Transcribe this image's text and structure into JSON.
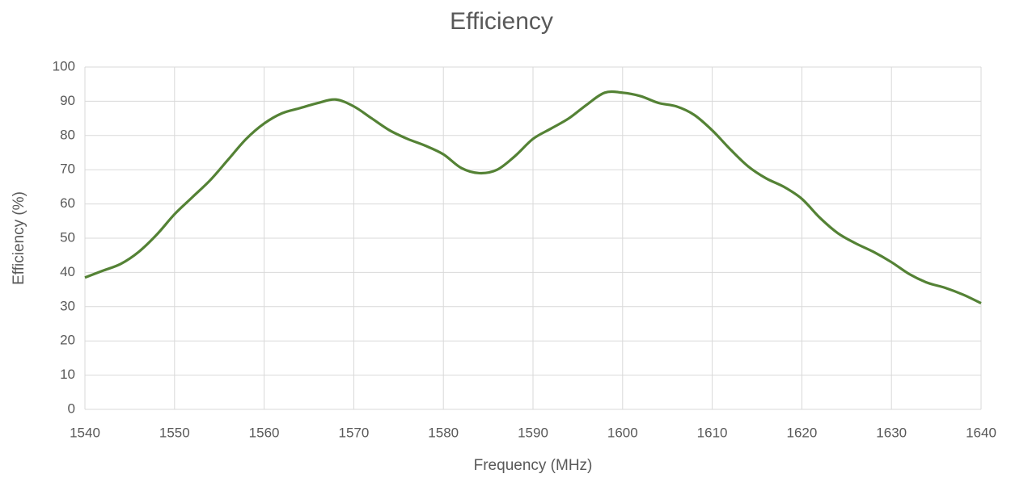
{
  "chart_data": {
    "type": "line",
    "title": "Efficiency",
    "x_label": "Frequency (MHz)",
    "y_label": "Efficiency (%)",
    "x": [
      1540,
      1542,
      1544,
      1546,
      1548,
      1550,
      1552,
      1554,
      1556,
      1558,
      1560,
      1562,
      1564,
      1566,
      1568,
      1570,
      1572,
      1574,
      1576,
      1578,
      1580,
      1582,
      1584,
      1586,
      1588,
      1590,
      1592,
      1594,
      1596,
      1598,
      1600,
      1602,
      1604,
      1606,
      1608,
      1610,
      1612,
      1614,
      1616,
      1618,
      1620,
      1622,
      1624,
      1626,
      1628,
      1630,
      1632,
      1634,
      1636,
      1638,
      1640
    ],
    "values": [
      38.5,
      40.5,
      42.5,
      46,
      51,
      57,
      62,
      67,
      73,
      79,
      83.5,
      86.5,
      88,
      89.5,
      90.5,
      88.5,
      85,
      81.5,
      79,
      77,
      74.5,
      70.5,
      69,
      70,
      74,
      79,
      82,
      85,
      89,
      92.5,
      92.5,
      91.5,
      89.5,
      88.5,
      86,
      81.5,
      76,
      71,
      67.5,
      65,
      61.5,
      56,
      51.5,
      48.5,
      46,
      43,
      39.5,
      37,
      35.5,
      33.5,
      31
    ],
    "color": "#548235",
    "xlim": [
      1540,
      1640
    ],
    "xticks": [
      1540,
      1550,
      1560,
      1570,
      1580,
      1590,
      1600,
      1610,
      1620,
      1630,
      1640
    ],
    "ylim": [
      0,
      100
    ],
    "yticks": [
      0,
      10,
      20,
      30,
      40,
      50,
      60,
      70,
      80,
      90,
      100
    ],
    "grid": true
  }
}
